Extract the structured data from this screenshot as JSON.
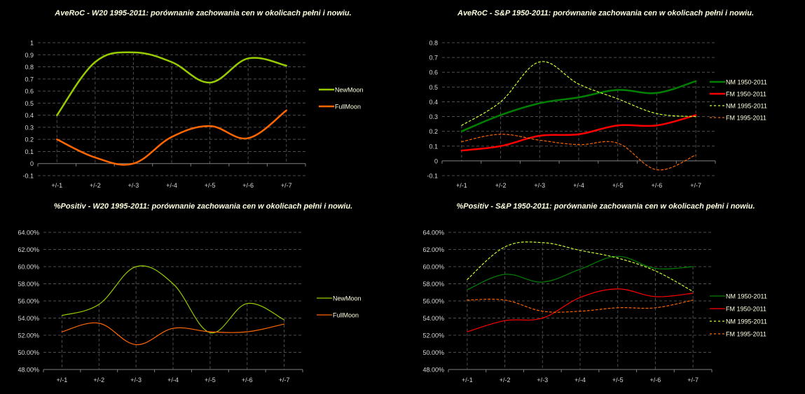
{
  "chart_data": [
    {
      "type": "line",
      "title": "AveRoC - W20 1995-2011: porównanie zachowania cen w okolicach pełni i nowiu.",
      "xlabel": "",
      "ylabel": "",
      "categories": [
        "+/-1",
        "+/-2",
        "+/-3",
        "+/-4",
        "+/-5",
        "+/-6",
        "+/-7"
      ],
      "ylim": [
        -0.1,
        1
      ],
      "yticks": [
        "-0.1",
        "0",
        "0.1",
        "0.2",
        "0.3",
        "0.4",
        "0.5",
        "0.6",
        "0.7",
        "0.8",
        "0.9",
        "1"
      ],
      "grid": true,
      "legend": "right",
      "series": [
        {
          "name": "NewMoon",
          "color": "#99cc00",
          "style": "solid",
          "width": "thick",
          "values": [
            0.4,
            0.84,
            0.92,
            0.84,
            0.67,
            0.87,
            0.81
          ]
        },
        {
          "name": "FullMoon",
          "color": "#ff6600",
          "style": "solid",
          "width": "thick",
          "values": [
            0.2,
            0.05,
            0.0,
            0.22,
            0.31,
            0.21,
            0.44
          ]
        }
      ]
    },
    {
      "type": "line",
      "title": "AveRoC - S&P 1950-2011: porównanie zachowania cen w okolicach pełni i nowiu.",
      "xlabel": "",
      "ylabel": "",
      "categories": [
        "+/-1",
        "+/-2",
        "+/-3",
        "+/-4",
        "+/-5",
        "+/-6",
        "+/-7"
      ],
      "ylim": [
        -0.1,
        0.8
      ],
      "yticks": [
        "-0.1",
        "0",
        "0.1",
        "0.2",
        "0.3",
        "0.4",
        "0.5",
        "0.6",
        "0.7",
        "0.8"
      ],
      "grid": true,
      "legend": "right",
      "series": [
        {
          "name": "NM 1950-2011",
          "color": "#008000",
          "style": "solid",
          "width": "thick",
          "values": [
            0.2,
            0.31,
            0.39,
            0.43,
            0.48,
            0.46,
            0.54
          ]
        },
        {
          "name": "FM 1950-2011",
          "color": "#ff0000",
          "style": "solid",
          "width": "thick",
          "values": [
            0.07,
            0.1,
            0.17,
            0.18,
            0.24,
            0.24,
            0.31
          ]
        },
        {
          "name": "NM 1995-2011",
          "color": "#ccff33",
          "style": "dashed",
          "width": "thin",
          "values": [
            0.24,
            0.4,
            0.67,
            0.52,
            0.42,
            0.32,
            0.3
          ]
        },
        {
          "name": "FM 1995-2011",
          "color": "#ff6600",
          "style": "dashed",
          "width": "thin",
          "values": [
            0.13,
            0.18,
            0.14,
            0.11,
            0.12,
            -0.06,
            0.04
          ]
        }
      ]
    },
    {
      "type": "line",
      "title": "%Positiv - W20 1995-2011: porównanie zachowania cen w okolicach pełni i nowiu.",
      "xlabel": "",
      "ylabel": "",
      "categories": [
        "+/-1",
        "+/-2",
        "+/-3",
        "+/-4",
        "+/-5",
        "+/-6",
        "+/-7"
      ],
      "ylim": [
        48,
        64
      ],
      "yticks": [
        "48.00%",
        "50.00%",
        "52.00%",
        "54.00%",
        "56.00%",
        "58.00%",
        "60.00%",
        "62.00%",
        "64.00%"
      ],
      "grid": true,
      "legend": "right",
      "series": [
        {
          "name": "NewMoon",
          "color": "#99cc00",
          "style": "solid",
          "width": "thin",
          "values": [
            54.3,
            55.6,
            60.0,
            58.0,
            52.3,
            55.7,
            53.8
          ]
        },
        {
          "name": "FullMoon",
          "color": "#ff6600",
          "style": "solid",
          "width": "thin",
          "values": [
            52.4,
            53.4,
            50.9,
            52.8,
            52.4,
            52.4,
            53.3
          ]
        }
      ]
    },
    {
      "type": "line",
      "title": "%Positiv - S&P 1950-2011: porównanie zachowania cen w okolicach pełni i nowiu.",
      "xlabel": "",
      "ylabel": "",
      "categories": [
        "+/-1",
        "+/-2",
        "+/-3",
        "+/-4",
        "+/-5",
        "+/-6",
        "+/-7"
      ],
      "ylim": [
        48,
        64
      ],
      "yticks": [
        "48.00%",
        "50.00%",
        "52.00%",
        "54.00%",
        "56.00%",
        "58.00%",
        "60.00%",
        "62.00%",
        "64.00%"
      ],
      "grid": true,
      "legend": "right",
      "series": [
        {
          "name": "NM 1950-2011",
          "color": "#008000",
          "style": "solid",
          "width": "thin",
          "values": [
            57.3,
            59.1,
            58.2,
            59.7,
            61.2,
            59.8,
            60.0
          ]
        },
        {
          "name": "FM 1950-2011",
          "color": "#ff0000",
          "style": "solid",
          "width": "thin",
          "values": [
            52.4,
            53.7,
            54.0,
            56.4,
            57.4,
            56.5,
            56.9
          ]
        },
        {
          "name": "NM 1995-2011",
          "color": "#ccff33",
          "style": "dashed",
          "width": "thin",
          "values": [
            58.5,
            62.3,
            62.8,
            61.9,
            61.0,
            59.5,
            57.1
          ]
        },
        {
          "name": "FM 1995-2011",
          "color": "#ff6600",
          "style": "dashed",
          "width": "thin",
          "values": [
            56.1,
            56.1,
            54.8,
            54.8,
            55.2,
            55.2,
            56.1
          ]
        }
      ]
    }
  ]
}
